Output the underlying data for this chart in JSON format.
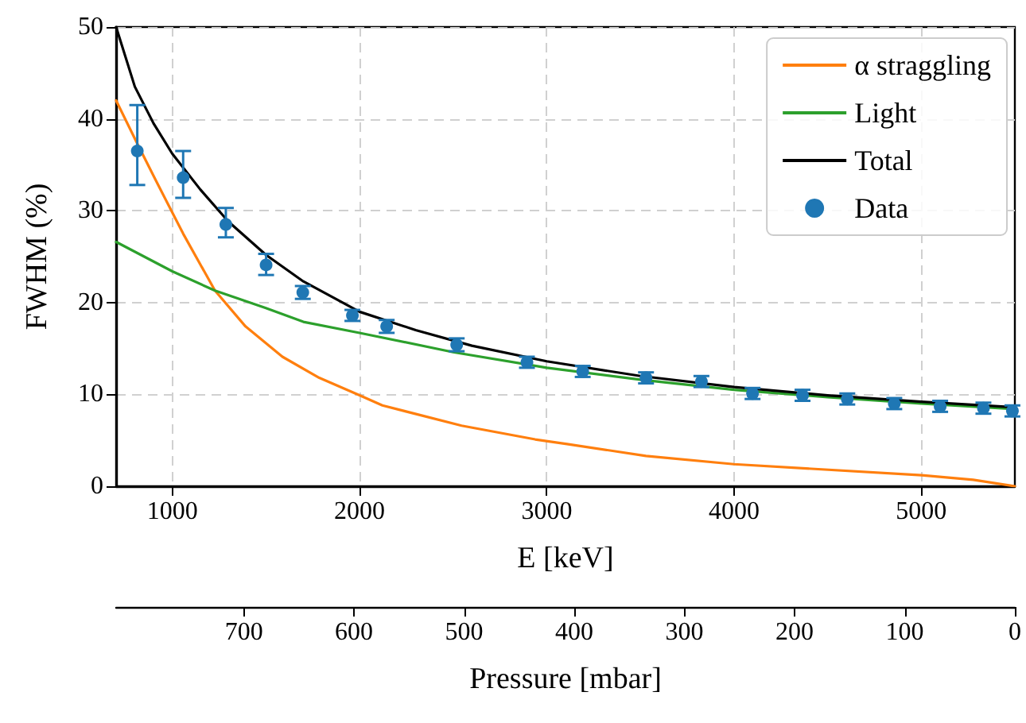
{
  "chart_data": {
    "type": "line",
    "xlabel": "E [keV]",
    "ylabel": "FWHM (%)",
    "x2label": "Pressure [mbar]",
    "xlim": [
      700,
      5500
    ],
    "xticks": [
      1000,
      2000,
      3000,
      4000,
      5000
    ],
    "ylim": [
      0,
      50
    ],
    "yticks": [
      0,
      10,
      20,
      30,
      40,
      50
    ],
    "x2lim": [
      816,
      0
    ],
    "x2ticks": [
      700,
      600,
      500,
      400,
      300,
      200,
      100,
      0
    ],
    "grid": true,
    "legend": "top right",
    "line_style": "solid",
    "series": [
      {
        "name": "α straggling",
        "marker": "none",
        "color": "#ff7f0e",
        "x": [
          700,
          813,
          912,
          1058,
          1228,
          1391,
          1588,
          1785,
          2000,
          2122,
          2545,
          2938,
          3108,
          3530,
          4000,
          5002,
          5277,
          5500
        ],
        "values": [
          42,
          37.3,
          33.3,
          27.5,
          21.3,
          17.4,
          14.1,
          11.8,
          9.9,
          8.8,
          6.6,
          5.1,
          4.6,
          3.3,
          2.4,
          1.2,
          0.7,
          0
        ]
      },
      {
        "name": "Light",
        "marker": "none",
        "color": "#2ca02c",
        "x": [
          700,
          1000,
          1228,
          1500,
          1700,
          2000,
          2500,
          3000,
          3500,
          4000,
          4500,
          5000,
          5500
        ],
        "values": [
          26.6,
          23.4,
          21.3,
          19.4,
          17.9,
          16.7,
          14.6,
          12.9,
          11.6,
          10.5,
          9.7,
          9.0,
          8.4
        ]
      },
      {
        "name": "Total",
        "marker": "none",
        "color": "#000000",
        "x": [
          700,
          800,
          900,
          1000,
          1150,
          1300,
          1500,
          1700,
          2000,
          2300,
          2600,
          3000,
          3500,
          4000,
          4500,
          5000,
          5500
        ],
        "values": [
          50,
          43.5,
          39.5,
          36.2,
          32.3,
          28.8,
          25.2,
          22.3,
          19.0,
          17.0,
          15.3,
          13.6,
          12.0,
          10.8,
          9.9,
          9.2,
          8.6
        ]
      },
      {
        "name": "Data",
        "type": "scatter",
        "marker": "circle",
        "color": "#1f77b4",
        "x": [
          813,
          1058,
          1286,
          1501,
          1697,
          1962,
          2145,
          2519,
          2894,
          3192,
          3530,
          3826,
          4099,
          4366,
          4605,
          4856,
          5101,
          5332,
          5487
        ],
        "values": [
          36.5,
          33.6,
          28.5,
          24.1,
          21.1,
          18.6,
          17.4,
          15.4,
          13.5,
          12.5,
          11.8,
          11.4,
          10.1,
          9.9,
          9.5,
          9.0,
          8.7,
          8.5,
          8.2
        ],
        "errors": [
          [
            32.8,
            41.5
          ],
          [
            31.4,
            36.5
          ],
          [
            27.1,
            30.3
          ],
          [
            23.0,
            25.3
          ],
          0.7,
          0.6,
          0.7,
          0.7,
          0.6,
          0.6,
          0.6,
          0.6,
          0.6,
          0.6,
          0.6,
          0.6,
          0.6,
          0.6,
          0.6
        ]
      }
    ]
  }
}
